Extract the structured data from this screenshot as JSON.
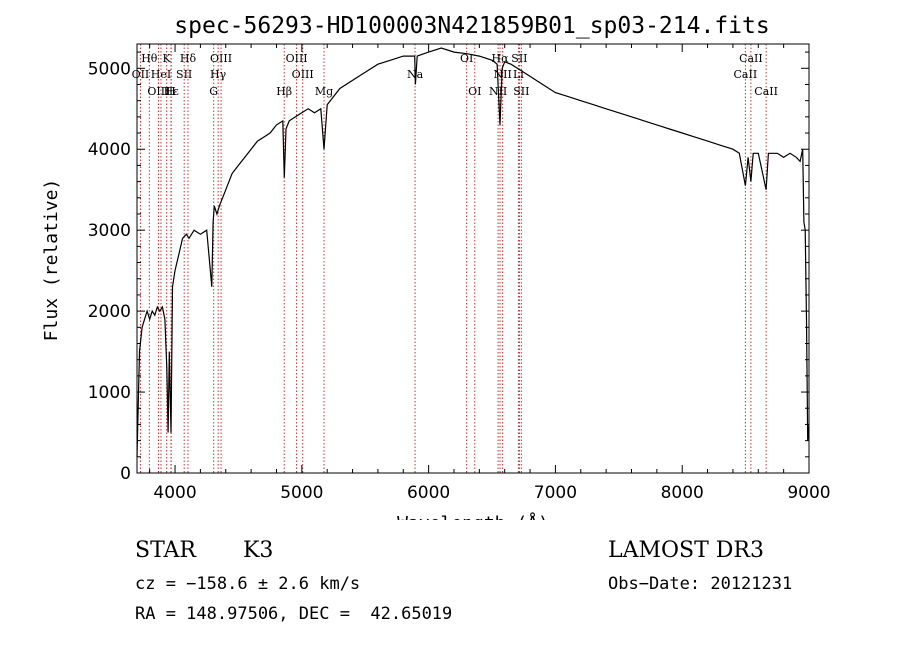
{
  "chart_data": {
    "type": "line",
    "title": "spec-56293-HD100003N421859B01_sp03-214.fits",
    "xlabel": "Wavelength (Å)",
    "ylabel": "Flux (relative)",
    "xlim": [
      3700,
      9000
    ],
    "ylim": [
      0,
      5300
    ],
    "x_ticks": [
      4000,
      5000,
      6000,
      7000,
      8000,
      9000
    ],
    "y_ticks": [
      0,
      1000,
      2000,
      3000,
      4000,
      5000
    ],
    "grid": false,
    "series": [
      {
        "x": [
          3700,
          3720,
          3740,
          3760,
          3780,
          3800,
          3820,
          3840,
          3860,
          3880,
          3900,
          3920,
          3935,
          3945,
          3955,
          3968,
          3980,
          4000,
          4030,
          4060,
          4090,
          4110,
          4150,
          4200,
          4250,
          4290,
          4300,
          4310,
          4330,
          4350,
          4400,
          4450,
          4500,
          4550,
          4600,
          4650,
          4700,
          4750,
          4800,
          4850,
          4862,
          4875,
          4900,
          4950,
          5000,
          5050,
          5100,
          5150,
          5175,
          5200,
          5250,
          5300,
          5400,
          5500,
          5600,
          5700,
          5800,
          5890,
          5896,
          5910,
          6000,
          6100,
          6200,
          6300,
          6400,
          6500,
          6540,
          6563,
          6580,
          6600,
          6650,
          6700,
          6800,
          6900,
          7000,
          7100,
          7200,
          7300,
          7400,
          7500,
          7600,
          7700,
          7800,
          7900,
          8000,
          8100,
          8200,
          8300,
          8400,
          8450,
          8498,
          8520,
          8542,
          8560,
          8600,
          8662,
          8680,
          8700,
          8750,
          8800,
          8850,
          8900,
          8930,
          8950,
          8960,
          8970,
          8980,
          8990,
          9000
        ],
        "y": [
          200,
          1500,
          1800,
          1900,
          2000,
          1900,
          2000,
          1950,
          2050,
          2000,
          2050,
          1900,
          1300,
          500,
          1500,
          500,
          2300,
          2500,
          2700,
          2900,
          2950,
          2900,
          3000,
          2950,
          3000,
          2300,
          3100,
          3300,
          3200,
          3300,
          3500,
          3700,
          3800,
          3900,
          4000,
          4100,
          4150,
          4200,
          4300,
          4350,
          3650,
          4250,
          4350,
          4400,
          4450,
          4500,
          4450,
          4500,
          4000,
          4550,
          4650,
          4750,
          4850,
          4950,
          5050,
          5100,
          5150,
          5150,
          4800,
          5150,
          5200,
          5250,
          5200,
          5180,
          5150,
          5100,
          5050,
          4300,
          5000,
          5080,
          5050,
          5000,
          4900,
          4800,
          4700,
          4650,
          4600,
          4550,
          4500,
          4450,
          4400,
          4350,
          4300,
          4250,
          4200,
          4150,
          4100,
          4050,
          4000,
          3950,
          3550,
          3900,
          3600,
          3950,
          3950,
          3500,
          3950,
          3950,
          3950,
          3900,
          3950,
          3900,
          3850,
          4000,
          3100,
          3000,
          1900,
          400,
          600
        ]
      }
    ],
    "line_markers": [
      {
        "label": "Hθ",
        "wl": 3797,
        "row": 1
      },
      {
        "label": "K",
        "wl": 3934,
        "row": 1
      },
      {
        "label": "Hδ",
        "wl": 4102,
        "row": 1
      },
      {
        "label": "OIII",
        "wl": 4363,
        "row": 1
      },
      {
        "label": "OIII",
        "wl": 4959,
        "row": 1
      },
      {
        "label": "OI",
        "wl": 6300,
        "row": 1
      },
      {
        "label": "Hα",
        "wl": 6563,
        "row": 1
      },
      {
        "label": "SII",
        "wl": 6716,
        "row": 1
      },
      {
        "label": "CaII",
        "wl": 8542,
        "row": 1
      },
      {
        "label": "OII",
        "wl": 3727,
        "row": 2
      },
      {
        "label": "HeI",
        "wl": 3889,
        "row": 2
      },
      {
        "label": "SII",
        "wl": 4072,
        "row": 2
      },
      {
        "label": "Hγ",
        "wl": 4340,
        "row": 2
      },
      {
        "label": "OIII",
        "wl": 5007,
        "row": 2
      },
      {
        "label": "Na",
        "wl": 5893,
        "row": 2
      },
      {
        "label": "NII",
        "wl": 6584,
        "row": 2
      },
      {
        "label": "Li",
        "wl": 6708,
        "row": 2
      },
      {
        "label": "CaII",
        "wl": 8498,
        "row": 2
      },
      {
        "label": "OIII",
        "wl": 3869,
        "row": 3
      },
      {
        "label": "Hε",
        "wl": 3970,
        "row": 3
      },
      {
        "label": "H",
        "wl": 3968,
        "row": 3
      },
      {
        "label": "G",
        "wl": 4305,
        "row": 3
      },
      {
        "label": "Hβ",
        "wl": 4861,
        "row": 3
      },
      {
        "label": "Mg",
        "wl": 5175,
        "row": 3
      },
      {
        "label": "OI",
        "wl": 6364,
        "row": 3
      },
      {
        "label": "NII",
        "wl": 6548,
        "row": 3
      },
      {
        "label": "SII",
        "wl": 6731,
        "row": 3
      },
      {
        "label": "CaII",
        "wl": 8662,
        "row": 3
      }
    ]
  },
  "info": {
    "class_label": "STAR",
    "subclass": "K3",
    "survey": "LAMOST DR3",
    "cz": "cz = −158.6 ± 2.6 km/s",
    "obs_date": "Obs−Date: 20121231",
    "coords": "RA = 148.97506, DEC =  42.65019"
  },
  "colors": {
    "line": "#000000",
    "marker": "#b22222",
    "background": "#ffffff"
  }
}
